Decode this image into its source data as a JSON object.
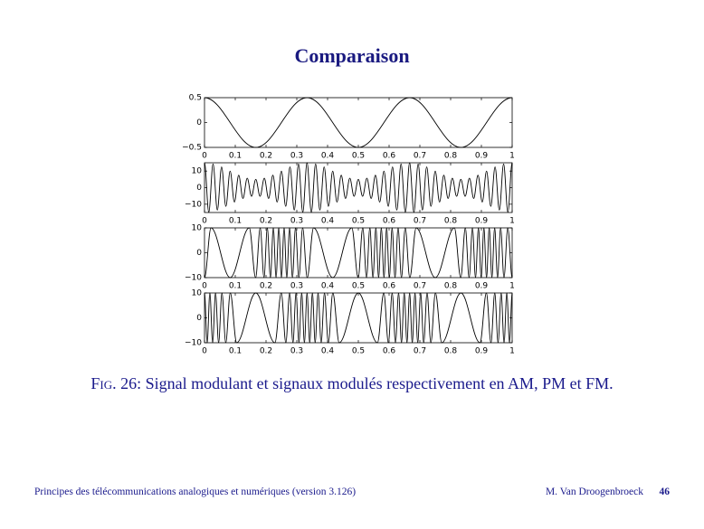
{
  "slide": {
    "title": "Comparaison"
  },
  "caption": {
    "label": "Fig. 26:",
    "text": "Signal modulant et signaux modulés respectivement en AM, PM et FM."
  },
  "footer": {
    "left": "Principes des télécommunications analogiques et numériques (version 3.126)",
    "author": "M. Van Droogenbroeck",
    "page": "46"
  },
  "chart_data": [
    {
      "type": "line",
      "color": "#000000",
      "x": [
        0,
        0.1667,
        0.3333,
        0.5,
        0.6667,
        0.8333,
        1
      ],
      "values": [
        0.5,
        -0.5,
        0.5,
        -0.5,
        0.5,
        -0.5,
        0.5
      ],
      "xlim": [
        0,
        1
      ],
      "xticks": [
        0,
        0.1,
        0.2,
        0.3,
        0.4,
        0.5,
        0.6,
        0.7,
        0.8,
        0.9,
        1
      ],
      "ylim": [
        -0.5,
        0.5
      ],
      "yticks": [
        {
          "value": -0.5,
          "label": "−0.5"
        },
        0,
        0.5
      ]
    },
    {
      "type": "line",
      "color": "#000000",
      "x": [
        0,
        0.0139,
        0.0278,
        0.0417,
        0.0556,
        0.0694,
        0.0833,
        0.0972,
        0.1111,
        0.125,
        0.1389,
        0.1528,
        0.1667,
        0.1806,
        0.1944,
        0.2083,
        0.2222,
        0.2361,
        0.25,
        0.2639,
        0.2778,
        0.2917,
        0.3056,
        0.3194,
        0.3333,
        0.3472,
        0.3611,
        0.375,
        0.3889,
        0.4028,
        0.4167,
        0.4306,
        0.4444,
        0.4583,
        0.4722,
        0.4861,
        0.5,
        0.5139,
        0.5278,
        0.5417,
        0.5556,
        0.5694,
        0.5833,
        0.5972,
        0.6111,
        0.625,
        0.6389,
        0.6528,
        0.6667,
        0.6806,
        0.6944,
        0.7083,
        0.7222,
        0.7361,
        0.75,
        0.7639,
        0.7778,
        0.7917,
        0.8056,
        0.8194,
        0.8333,
        0.8472,
        0.8611,
        0.875,
        0.8889,
        0.9028,
        0.9167,
        0.9306,
        0.9444,
        0.9583,
        0.9722,
        0.9861,
        1
      ],
      "values": [
        15,
        -14.8,
        14.3,
        -13.5,
        12.5,
        -11.3,
        10,
        -8.7,
        7.5,
        -6.5,
        5.7,
        -5.2,
        5,
        -5.2,
        5.7,
        -6.5,
        7.5,
        -8.7,
        10,
        -11.3,
        12.5,
        -13.5,
        14.3,
        -14.8,
        15,
        -14.8,
        14.3,
        -13.5,
        12.5,
        -11.3,
        10,
        -8.7,
        7.5,
        -6.5,
        5.7,
        -5.2,
        5,
        -5.2,
        5.7,
        -6.5,
        7.5,
        -8.7,
        10,
        -11.3,
        12.5,
        -13.5,
        14.3,
        -14.8,
        15,
        -14.8,
        14.3,
        -13.5,
        12.5,
        -11.3,
        10,
        -8.7,
        7.5,
        -6.5,
        5.7,
        -5.2,
        5,
        -5.2,
        5.7,
        -6.5,
        7.5,
        -8.7,
        10,
        -11.3,
        12.5,
        -13.5,
        14.3,
        -14.8,
        15
      ],
      "xlim": [
        0,
        1
      ],
      "xticks": [
        0,
        0.1,
        0.2,
        0.3,
        0.4,
        0.5,
        0.6,
        0.7,
        0.8,
        0.9,
        1
      ],
      "ylim": [
        -15,
        15
      ],
      "yticks": [
        {
          "value": -10,
          "label": "−10"
        },
        0,
        10
      ]
    },
    {
      "type": "line",
      "color": "#000000",
      "x": [
        0,
        0.0212,
        0.0834,
        0.1455,
        0.1662,
        0.1811,
        0.1934,
        0.2042,
        0.2142,
        0.2237,
        0.2326,
        0.2414,
        0.25,
        0.2587,
        0.2674,
        0.2764,
        0.2858,
        0.2958,
        0.3067,
        0.319,
        0.3338,
        0.3545,
        0.4167,
        0.4788,
        0.4995,
        0.5144,
        0.5267,
        0.5375,
        0.5475,
        0.557,
        0.5659,
        0.5747,
        0.5834,
        0.592,
        0.6008,
        0.6098,
        0.6192,
        0.6292,
        0.6401,
        0.6524,
        0.6672,
        0.6879,
        0.75,
        0.8122,
        0.8329,
        0.8478,
        0.8601,
        0.8709,
        0.8809,
        0.8904,
        0.8993,
        0.9081,
        0.9167,
        0.9254,
        0.9341,
        0.9431,
        0.9525,
        0.9625,
        0.9734,
        0.9857,
        1
      ],
      "values": [
        -10,
        10,
        -10,
        10,
        -10,
        10,
        -10,
        10,
        -10,
        10,
        -10,
        10,
        -10,
        10,
        -10,
        10,
        -10,
        10,
        -10,
        10,
        -10,
        10,
        -10,
        10,
        -10,
        10,
        -10,
        10,
        -10,
        10,
        -10,
        10,
        -10,
        10,
        -10,
        10,
        -10,
        10,
        -10,
        10,
        -10,
        10,
        -10,
        10,
        -10,
        10,
        -10,
        10,
        -10,
        10,
        -10,
        10,
        -10,
        10,
        -10,
        10,
        -10,
        10,
        -10,
        10,
        -10
      ],
      "xlim": [
        0,
        1
      ],
      "xticks": [
        0,
        0.1,
        0.2,
        0.3,
        0.4,
        0.5,
        0.6,
        0.7,
        0.8,
        0.9,
        1
      ],
      "ylim": [
        -10,
        10
      ],
      "yticks": [
        {
          "value": -10,
          "label": "−10"
        },
        0,
        10
      ]
    },
    {
      "type": "line",
      "color": "#000000",
      "x": [
        0,
        0.0087,
        0.0174,
        0.0264,
        0.0358,
        0.0458,
        0.0567,
        0.069,
        0.0838,
        0.1045,
        0.1667,
        0.2288,
        0.2495,
        0.2644,
        0.2767,
        0.2875,
        0.2975,
        0.307,
        0.3159,
        0.3247,
        0.3333,
        0.342,
        0.3507,
        0.3597,
        0.3691,
        0.3791,
        0.39,
        0.4023,
        0.4171,
        0.4378,
        0.5,
        0.5621,
        0.5828,
        0.5977,
        0.61,
        0.6208,
        0.6308,
        0.6403,
        0.6492,
        0.658,
        0.6667,
        0.6753,
        0.6841,
        0.6931,
        0.7025,
        0.7125,
        0.7234,
        0.7357,
        0.7505,
        0.7712,
        0.8333,
        0.8955,
        0.9162,
        0.9311,
        0.9434,
        0.9542,
        0.9642,
        0.9737,
        0.9826,
        0.9914,
        1
      ],
      "values": [
        10,
        -10,
        10,
        -10,
        10,
        -10,
        10,
        -10,
        10,
        -10,
        10,
        -10,
        10,
        -10,
        10,
        -10,
        10,
        -10,
        10,
        -10,
        10,
        -10,
        10,
        -10,
        10,
        -10,
        10,
        -10,
        10,
        -10,
        10,
        -10,
        10,
        -10,
        10,
        -10,
        10,
        -10,
        10,
        -10,
        10,
        -10,
        10,
        -10,
        10,
        -10,
        10,
        -10,
        10,
        -10,
        10,
        -10,
        10,
        -10,
        10,
        -10,
        10,
        -10,
        10,
        -10,
        10
      ],
      "xlim": [
        0,
        1
      ],
      "xticks": [
        0,
        0.1,
        0.2,
        0.3,
        0.4,
        0.5,
        0.6,
        0.7,
        0.8,
        0.9,
        1
      ],
      "ylim": [
        -10,
        10
      ],
      "yticks": [
        {
          "value": -10,
          "label": "−10"
        },
        0,
        10
      ]
    }
  ]
}
